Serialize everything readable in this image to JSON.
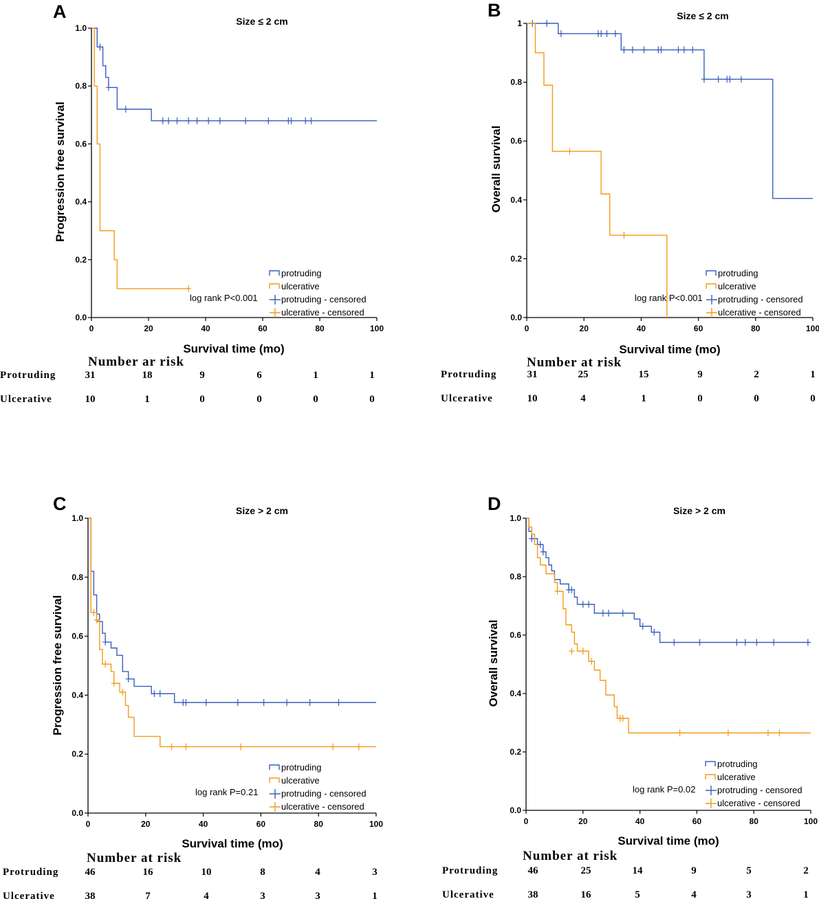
{
  "colors": {
    "protruding": "#3a5ebd",
    "ulcerative": "#f39a1a",
    "axis": "#000000"
  },
  "chart_data": [
    {
      "type": "line",
      "subtype": "kaplan-meier",
      "panel": "A",
      "title": "Size ≤ 2 cm",
      "xlabel": "Survival time (mo)",
      "ylabel": "Progression free survival",
      "xlim": [
        0,
        100
      ],
      "ylim": [
        0,
        1
      ],
      "xticks": [
        "0",
        "20",
        "40",
        "60",
        "80",
        "100"
      ],
      "yticks": [
        "0.0",
        "0.2",
        "0.4",
        "0.6",
        "0.8",
        "1.0"
      ],
      "legend": [
        "protruding",
        "ulcerative",
        "protruding - censored",
        "ulcerative - censored"
      ],
      "pvalue": "log rank P<0.001",
      "series": [
        {
          "name": "protruding",
          "steps": [
            [
              0,
              1.0
            ],
            [
              2,
              0.935
            ],
            [
              4,
              0.87
            ],
            [
              5,
              0.83
            ],
            [
              6,
              0.795
            ],
            [
              9,
              0.72
            ],
            [
              21,
              0.68
            ],
            [
              100,
              0.68
            ]
          ],
          "censored": [
            [
              3,
              0.935
            ],
            [
              6,
              0.795
            ],
            [
              12,
              0.72
            ],
            [
              25,
              0.68
            ],
            [
              27,
              0.68
            ],
            [
              30,
              0.68
            ],
            [
              34,
              0.68
            ],
            [
              37,
              0.68
            ],
            [
              41,
              0.68
            ],
            [
              45,
              0.68
            ],
            [
              54,
              0.68
            ],
            [
              62,
              0.68
            ],
            [
              69,
              0.68
            ],
            [
              70,
              0.68
            ],
            [
              75,
              0.68
            ],
            [
              77,
              0.68
            ]
          ]
        },
        {
          "name": "ulcerative",
          "steps": [
            [
              0,
              1.0
            ],
            [
              1,
              0.8
            ],
            [
              2,
              0.6
            ],
            [
              3,
              0.3
            ],
            [
              8,
              0.2
            ],
            [
              9,
              0.1
            ],
            [
              34,
              0.1
            ]
          ],
          "censored": [
            [
              34,
              0.1
            ]
          ]
        }
      ],
      "risk_table": {
        "header": "Number ar risk",
        "rows": [
          {
            "label": "Protruding",
            "values": [
              "31",
              "18",
              "9",
              "6",
              "1",
              "1"
            ]
          },
          {
            "label": "Ulcerative",
            "values": [
              "10",
              "1",
              "0",
              "0",
              "0",
              "0"
            ]
          }
        ]
      }
    },
    {
      "type": "line",
      "subtype": "kaplan-meier",
      "panel": "B",
      "title": "Size ≤ 2 cm",
      "xlabel": "Survival time (mo)",
      "ylabel": "Overall survival",
      "xlim": [
        0,
        100
      ],
      "ylim": [
        0,
        1
      ],
      "xticks": [
        "0",
        "20",
        "40",
        "60",
        "80",
        "100"
      ],
      "yticks": [
        "0.0",
        "0.2",
        "0.4",
        "0.6",
        "0.8",
        "1"
      ],
      "legend": [
        "protruding",
        "ulcerative",
        "protruding - censored",
        "ulcerative - censored"
      ],
      "pvalue": "log rank P<0.001",
      "series": [
        {
          "name": "protruding",
          "steps": [
            [
              0,
              1.0
            ],
            [
              11,
              0.965
            ],
            [
              33,
              0.91
            ],
            [
              62,
              0.81
            ],
            [
              86,
              0.405
            ],
            [
              100,
              0.405
            ]
          ],
          "censored": [
            [
              2,
              1.0
            ],
            [
              7,
              1.0
            ],
            [
              12,
              0.965
            ],
            [
              25,
              0.965
            ],
            [
              26,
              0.965
            ],
            [
              28,
              0.965
            ],
            [
              31,
              0.965
            ],
            [
              34,
              0.91
            ],
            [
              37,
              0.91
            ],
            [
              41,
              0.91
            ],
            [
              46,
              0.91
            ],
            [
              47,
              0.91
            ],
            [
              53,
              0.91
            ],
            [
              55,
              0.91
            ],
            [
              58,
              0.91
            ],
            [
              62,
              0.81
            ],
            [
              67,
              0.81
            ],
            [
              70,
              0.81
            ],
            [
              71,
              0.81
            ],
            [
              75,
              0.81
            ]
          ]
        },
        {
          "name": "ulcerative",
          "steps": [
            [
              0,
              1.0
            ],
            [
              3,
              0.9
            ],
            [
              6,
              0.79
            ],
            [
              9,
              0.565
            ],
            [
              26,
              0.42
            ],
            [
              29,
              0.28
            ],
            [
              49,
              0.0
            ]
          ],
          "censored": [
            [
              15,
              0.565
            ],
            [
              34,
              0.28
            ]
          ]
        }
      ],
      "risk_table": {
        "header": "Number at risk",
        "rows": [
          {
            "label": "Protruding",
            "values": [
              "31",
              "25",
              "15",
              "9",
              "2",
              "1"
            ]
          },
          {
            "label": "Ulcerative",
            "values": [
              "10",
              "4",
              "1",
              "0",
              "0",
              "0"
            ]
          }
        ]
      }
    },
    {
      "type": "line",
      "subtype": "kaplan-meier",
      "panel": "C",
      "title": "Size > 2 cm",
      "xlabel": "Survival time (mo)",
      "ylabel": "Progression free survival",
      "xlim": [
        0,
        100
      ],
      "ylim": [
        0,
        1
      ],
      "xticks": [
        "0",
        "20",
        "40",
        "60",
        "80",
        "100"
      ],
      "yticks": [
        "0.0",
        "0.2",
        "0.4",
        "0.6",
        "0.8",
        "1.0"
      ],
      "legend": [
        "protruding",
        "ulcerative",
        "protruding - censored",
        "ulcerative - censored"
      ],
      "pvalue": "log rank P=0.21",
      "series": [
        {
          "name": "protruding",
          "steps": [
            [
              0,
              1.0
            ],
            [
              1,
              0.82
            ],
            [
              2,
              0.74
            ],
            [
              3,
              0.675
            ],
            [
              4,
              0.65
            ],
            [
              5,
              0.61
            ],
            [
              6,
              0.58
            ],
            [
              8,
              0.56
            ],
            [
              10,
              0.535
            ],
            [
              12,
              0.48
            ],
            [
              14,
              0.455
            ],
            [
              16,
              0.43
            ],
            [
              22,
              0.405
            ],
            [
              30,
              0.375
            ],
            [
              100,
              0.375
            ]
          ],
          "censored": [
            [
              4,
              0.65
            ],
            [
              6,
              0.58
            ],
            [
              14,
              0.455
            ],
            [
              23,
              0.405
            ],
            [
              25,
              0.405
            ],
            [
              33,
              0.375
            ],
            [
              34,
              0.375
            ],
            [
              41,
              0.375
            ],
            [
              52,
              0.375
            ],
            [
              61,
              0.375
            ],
            [
              69,
              0.375
            ],
            [
              77,
              0.375
            ],
            [
              87,
              0.375
            ]
          ]
        },
        {
          "name": "ulcerative",
          "steps": [
            [
              0,
              1.0
            ],
            [
              1,
              0.68
            ],
            [
              3,
              0.655
            ],
            [
              4,
              0.555
            ],
            [
              5,
              0.505
            ],
            [
              8,
              0.48
            ],
            [
              9,
              0.44
            ],
            [
              11,
              0.41
            ],
            [
              13,
              0.365
            ],
            [
              14,
              0.325
            ],
            [
              16,
              0.26
            ],
            [
              25,
              0.225
            ],
            [
              100,
              0.225
            ]
          ],
          "censored": [
            [
              2,
              0.68
            ],
            [
              3,
              0.655
            ],
            [
              6,
              0.505
            ],
            [
              9,
              0.44
            ],
            [
              12,
              0.41
            ],
            [
              29,
              0.225
            ],
            [
              34,
              0.225
            ],
            [
              53,
              0.225
            ],
            [
              85,
              0.225
            ],
            [
              94,
              0.225
            ]
          ]
        }
      ],
      "risk_table": {
        "header": "Number at risk",
        "rows": [
          {
            "label": "Protruding",
            "values": [
              "46",
              "16",
              "10",
              "8",
              "4",
              "3"
            ]
          },
          {
            "label": "Ulcerative",
            "values": [
              "38",
              "7",
              "4",
              "3",
              "3",
              "1"
            ]
          }
        ]
      }
    },
    {
      "type": "line",
      "subtype": "kaplan-meier",
      "panel": "D",
      "title": "Size > 2 cm",
      "xlabel": "Survival time (mo)",
      "ylabel": "Overall survival",
      "xlim": [
        0,
        100
      ],
      "ylim": [
        0,
        1
      ],
      "xticks": [
        "0",
        "20",
        "40",
        "60",
        "80",
        "100"
      ],
      "yticks": [
        "0.0",
        "0.2",
        "0.4",
        "0.6",
        "0.8",
        "1.0"
      ],
      "legend": [
        "protruding",
        "ulcerative",
        "protruding - censored",
        "ulcerative - censored"
      ],
      "pvalue": "log rank P=0.02",
      "series": [
        {
          "name": "protruding",
          "steps": [
            [
              0,
              1.0
            ],
            [
              1,
              0.955
            ],
            [
              2,
              0.93
            ],
            [
              4,
              0.91
            ],
            [
              6,
              0.885
            ],
            [
              7,
              0.865
            ],
            [
              8,
              0.84
            ],
            [
              9,
              0.82
            ],
            [
              10,
              0.79
            ],
            [
              12,
              0.775
            ],
            [
              15,
              0.755
            ],
            [
              17,
              0.73
            ],
            [
              18,
              0.705
            ],
            [
              24,
              0.675
            ],
            [
              38,
              0.655
            ],
            [
              40,
              0.63
            ],
            [
              44,
              0.61
            ],
            [
              47,
              0.575
            ],
            [
              100,
              0.575
            ]
          ],
          "censored": [
            [
              2,
              0.93
            ],
            [
              5,
              0.91
            ],
            [
              6,
              0.885
            ],
            [
              15,
              0.755
            ],
            [
              16,
              0.755
            ],
            [
              20,
              0.705
            ],
            [
              22,
              0.705
            ],
            [
              27,
              0.675
            ],
            [
              29,
              0.675
            ],
            [
              34,
              0.675
            ],
            [
              41,
              0.63
            ],
            [
              45,
              0.61
            ],
            [
              52,
              0.575
            ],
            [
              61,
              0.575
            ],
            [
              74,
              0.575
            ],
            [
              77,
              0.575
            ],
            [
              81,
              0.575
            ],
            [
              87,
              0.575
            ],
            [
              99,
              0.575
            ]
          ]
        },
        {
          "name": "ulcerative",
          "steps": [
            [
              0,
              1.0
            ],
            [
              1,
              0.97
            ],
            [
              2,
              0.945
            ],
            [
              3,
              0.91
            ],
            [
              4,
              0.865
            ],
            [
              5,
              0.84
            ],
            [
              7,
              0.81
            ],
            [
              10,
              0.78
            ],
            [
              11,
              0.75
            ],
            [
              13,
              0.69
            ],
            [
              14,
              0.635
            ],
            [
              16,
              0.61
            ],
            [
              17,
              0.57
            ],
            [
              18,
              0.545
            ],
            [
              22,
              0.51
            ],
            [
              24,
              0.48
            ],
            [
              26,
              0.445
            ],
            [
              28,
              0.395
            ],
            [
              31,
              0.355
            ],
            [
              32,
              0.315
            ],
            [
              36,
              0.265
            ],
            [
              100,
              0.265
            ]
          ],
          "censored": [
            [
              11,
              0.75
            ],
            [
              16,
              0.545
            ],
            [
              20,
              0.545
            ],
            [
              23,
              0.51
            ],
            [
              33,
              0.315
            ],
            [
              34,
              0.315
            ],
            [
              54,
              0.265
            ],
            [
              71,
              0.265
            ],
            [
              85,
              0.265
            ],
            [
              89,
              0.265
            ]
          ]
        }
      ],
      "risk_table": {
        "header": "Number at risk",
        "rows": [
          {
            "label": "Protruding",
            "values": [
              "46",
              "25",
              "14",
              "9",
              "5",
              "2"
            ]
          },
          {
            "label": "Ulcerative",
            "values": [
              "38",
              "16",
              "5",
              "4",
              "3",
              "1"
            ]
          }
        ]
      }
    }
  ]
}
